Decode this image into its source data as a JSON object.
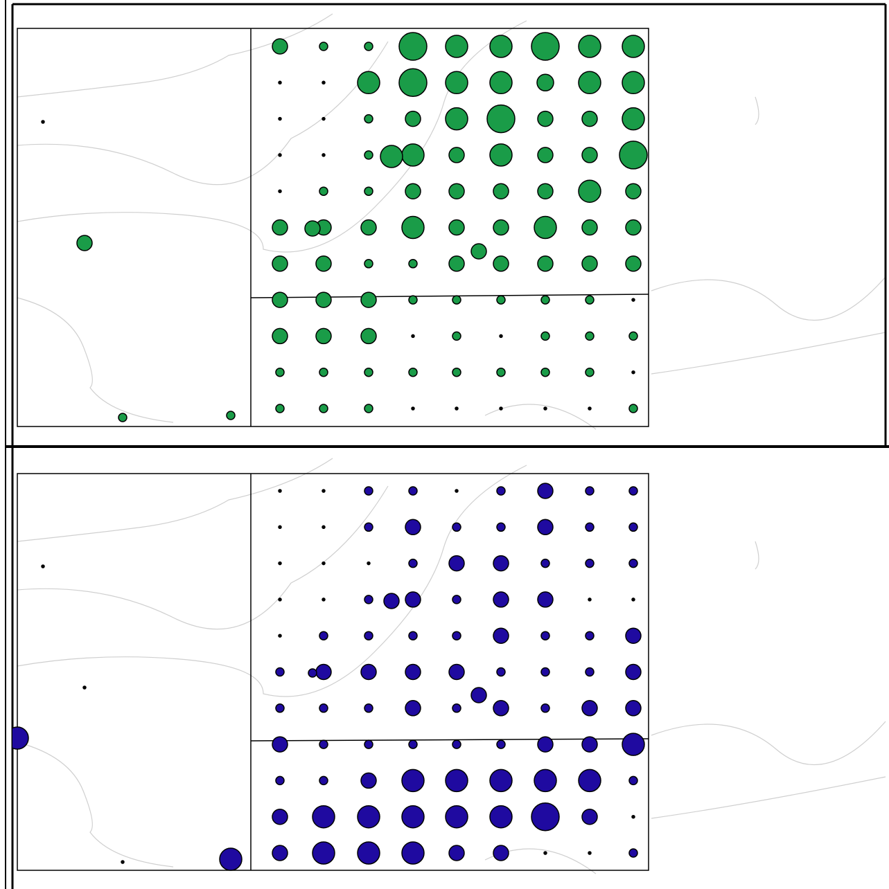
{
  "panels": [
    {
      "color": "#1a9c48",
      "grid": [
        [
          11,
          6,
          6,
          20,
          16,
          16,
          20,
          16,
          16
        ],
        [
          2,
          2,
          16,
          20,
          16,
          16,
          12,
          16,
          16
        ],
        [
          2,
          2,
          6,
          11,
          16,
          20,
          11,
          11,
          16
        ],
        [
          2,
          2,
          6,
          16,
          11,
          16,
          11,
          11,
          20
        ],
        [
          2,
          6,
          6,
          11,
          11,
          11,
          11,
          16,
          11
        ],
        [
          11,
          11,
          11,
          16,
          11,
          11,
          16,
          11,
          11
        ],
        [
          11,
          11,
          6,
          6,
          11,
          11,
          11,
          11,
          11
        ],
        [
          11,
          11,
          11,
          6,
          6,
          6,
          6,
          6,
          2
        ],
        [
          11,
          11,
          11,
          2,
          6,
          2,
          6,
          6,
          6
        ],
        [
          6,
          6,
          6,
          6,
          6,
          6,
          6,
          6,
          2
        ],
        [
          6,
          6,
          6,
          2,
          2,
          2,
          2,
          2,
          6
        ]
      ],
      "extras": [
        2,
        11,
        6,
        6,
        16,
        11,
        11
      ]
    },
    {
      "color": "#1f0aa0",
      "grid": [
        [
          2,
          2,
          6,
          6,
          2,
          6,
          11,
          6,
          6
        ],
        [
          2,
          2,
          6,
          11,
          6,
          6,
          11,
          6,
          6
        ],
        [
          2,
          2,
          2,
          6,
          11,
          11,
          6,
          6,
          6
        ],
        [
          2,
          2,
          6,
          11,
          6,
          11,
          11,
          2,
          2
        ],
        [
          2,
          6,
          6,
          6,
          6,
          11,
          6,
          6,
          11
        ],
        [
          6,
          11,
          11,
          11,
          11,
          6,
          6,
          6,
          11
        ],
        [
          6,
          6,
          6,
          11,
          6,
          11,
          6,
          11,
          11
        ],
        [
          11,
          6,
          6,
          6,
          6,
          6,
          11,
          11,
          16
        ],
        [
          6,
          6,
          11,
          16,
          16,
          16,
          16,
          16,
          6
        ],
        [
          11,
          16,
          16,
          16,
          16,
          16,
          20,
          11,
          2
        ],
        [
          11,
          16,
          16,
          16,
          11,
          11,
          2,
          2,
          6
        ]
      ],
      "extras": [
        2,
        2,
        2,
        16,
        11,
        6,
        11,
        16
      ]
    }
  ]
}
